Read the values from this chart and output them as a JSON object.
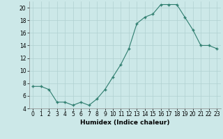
{
  "x": [
    0,
    1,
    2,
    3,
    4,
    5,
    6,
    7,
    8,
    9,
    10,
    11,
    12,
    13,
    14,
    15,
    16,
    17,
    18,
    19,
    20,
    21,
    22,
    23
  ],
  "y": [
    7.5,
    7.5,
    7.0,
    5.0,
    5.0,
    4.5,
    5.0,
    4.5,
    5.5,
    7.0,
    9.0,
    11.0,
    13.5,
    17.5,
    18.5,
    19.0,
    20.5,
    20.5,
    20.5,
    18.5,
    16.5,
    14.0,
    14.0,
    13.5
  ],
  "line_color": "#2e7d6e",
  "marker_color": "#2e7d6e",
  "bg_color": "#cce8e8",
  "grid_color": "#b0d0d0",
  "xlabel": "Humidex (Indice chaleur)",
  "xlim": [
    -0.5,
    23.5
  ],
  "ylim": [
    4,
    21
  ],
  "yticks": [
    4,
    6,
    8,
    10,
    12,
    14,
    16,
    18,
    20
  ],
  "xticks": [
    0,
    1,
    2,
    3,
    4,
    5,
    6,
    7,
    8,
    9,
    10,
    11,
    12,
    13,
    14,
    15,
    16,
    17,
    18,
    19,
    20,
    21,
    22,
    23
  ],
  "label_fontsize": 6.5,
  "tick_fontsize": 5.5
}
